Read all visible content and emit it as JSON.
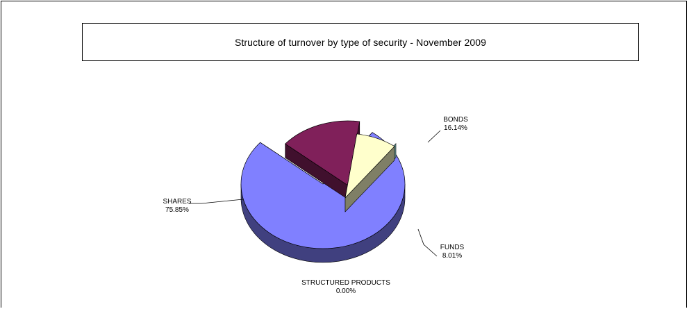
{
  "chart_data": {
    "type": "pie",
    "title": "Structure of turnover by type of security - November 2009",
    "categories": [
      "SHARES",
      "BONDS",
      "FUNDS",
      "STRUCTURED PRODUCTS"
    ],
    "values": [
      75.85,
      16.14,
      8.01,
      0.0
    ],
    "labels": [
      "75.85%",
      "16.14%",
      "8.01%",
      "0.00%"
    ],
    "colors": {
      "SHARES": "#8080ff",
      "BONDS": "#80205a",
      "FUNDS": "#ffffcc",
      "STRUCTURED PRODUCTS": "#6a9a9a"
    },
    "style": "3d-exploded",
    "legend": "none"
  }
}
